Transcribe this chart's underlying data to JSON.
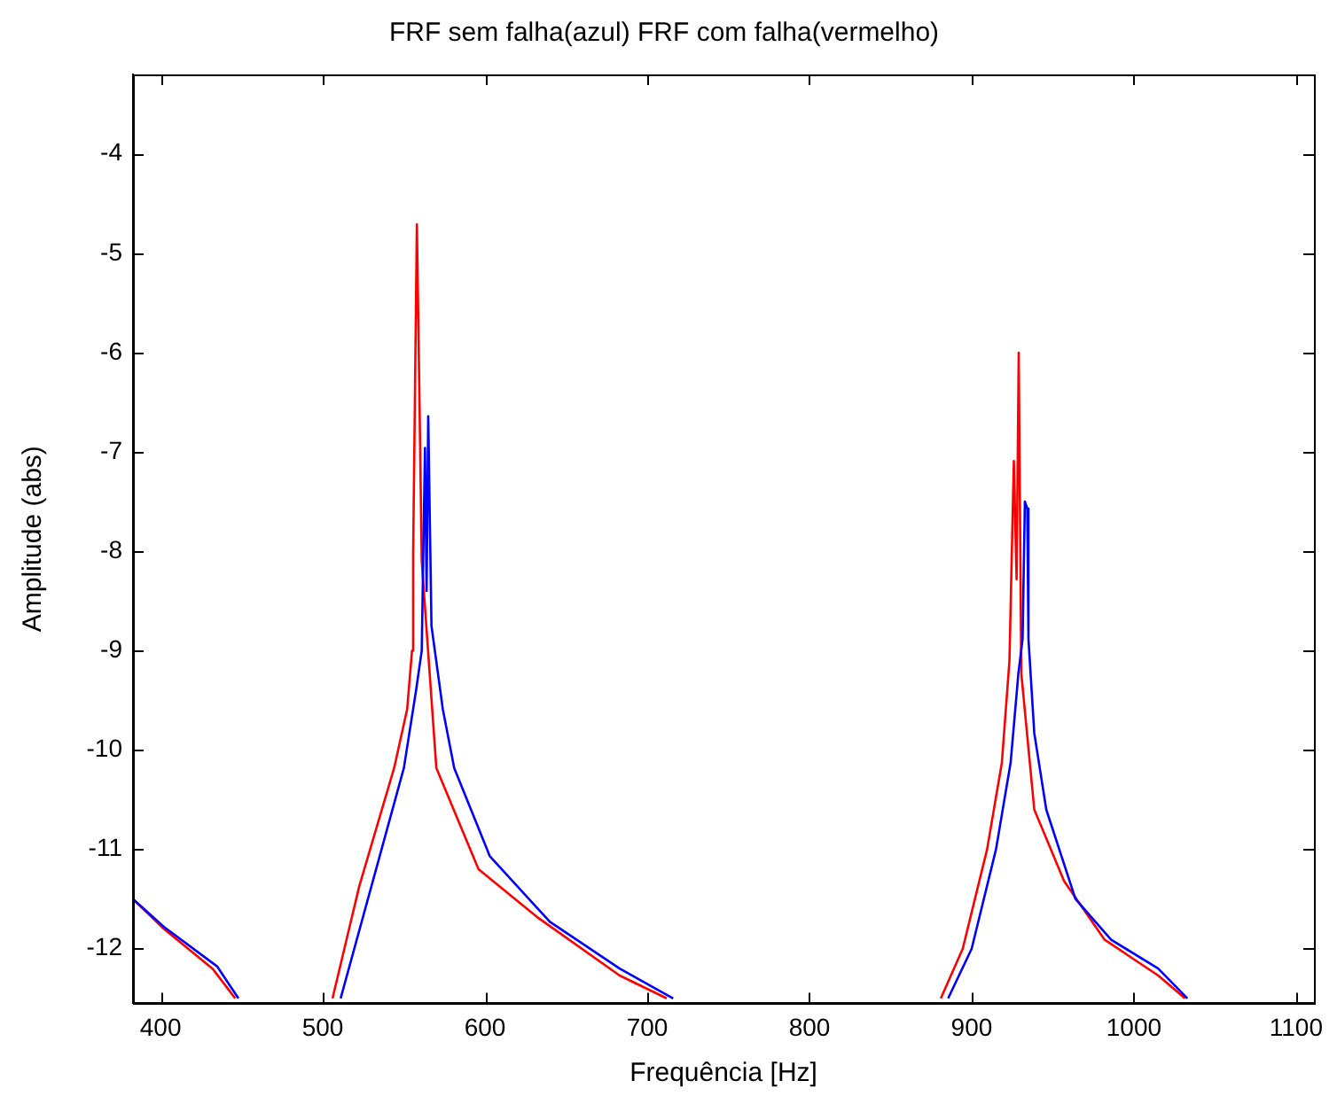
{
  "chart_data": {
    "type": "line",
    "title": "FRF sem falha(azul) FRF com falha(vermelho)",
    "xlabel": "Frequência [Hz]",
    "ylabel": "Amplitude (abs)",
    "xlim": [
      383,
      1111
    ],
    "ylim": [
      -12.55,
      -3.2
    ],
    "xticks": [
      400,
      500,
      600,
      700,
      800,
      900,
      1000,
      1100
    ],
    "yticks": [
      -12,
      -11,
      -10,
      -9,
      -8,
      -7,
      -6,
      -5,
      -4
    ],
    "grid": false,
    "legend": false,
    "marker": "none",
    "line_style": "solid",
    "series": [
      {
        "color": "#0000ff",
        "x": [
          383,
          402,
          435,
          448,
          480,
          511,
          530,
          550,
          557.5,
          561,
          563,
          564,
          565,
          567,
          574,
          581,
          603,
          640,
          683,
          716,
          800,
          885.5,
          900,
          915,
          924,
          928.8,
          931.4,
          932.8,
          934.3,
          935,
          938.6,
          946,
          964,
          986,
          1015,
          1033
        ],
        "values": [
          -11.5,
          -11.78,
          -12.18,
          -12.5,
          null,
          -12.5,
          -11.37,
          -10.18,
          -9.4,
          -9.0,
          -6.96,
          -8.4,
          -6.64,
          -8.75,
          -9.59,
          -10.18,
          -11.07,
          -11.73,
          -12.2,
          -12.5,
          null,
          -12.5,
          -12.0,
          -11.0,
          -10.13,
          -9.23,
          -8.88,
          -7.5,
          -7.57,
          -8.88,
          -9.83,
          -10.6,
          -11.5,
          -11.91,
          -12.2,
          -12.5
        ]
      },
      {
        "color": "#ff0000",
        "x": [
          383,
          402,
          432,
          446,
          480,
          506,
          522.5,
          544,
          552,
          555,
          555.7,
          558,
          559.4,
          561,
          570,
          596,
          632,
          683,
          712,
          800,
          881,
          894.5,
          909.5,
          918.6,
          923.3,
          926,
          927.7,
          929,
          930.6,
          938.6,
          957,
          982,
          1015,
          1031.5
        ],
        "values": [
          -11.5,
          -11.8,
          -12.2,
          -12.5,
          null,
          -12.5,
          -11.37,
          -10.18,
          -9.59,
          -9.0,
          -8.04,
          -4.71,
          -6.25,
          -8.1,
          -10.18,
          -11.2,
          -11.68,
          -12.27,
          -12.5,
          null,
          -12.5,
          -12.0,
          -11.0,
          -10.13,
          -9.1,
          -7.09,
          -8.28,
          -6.0,
          -9.23,
          -10.6,
          -11.32,
          -11.91,
          -12.27,
          -12.5
        ]
      }
    ]
  }
}
